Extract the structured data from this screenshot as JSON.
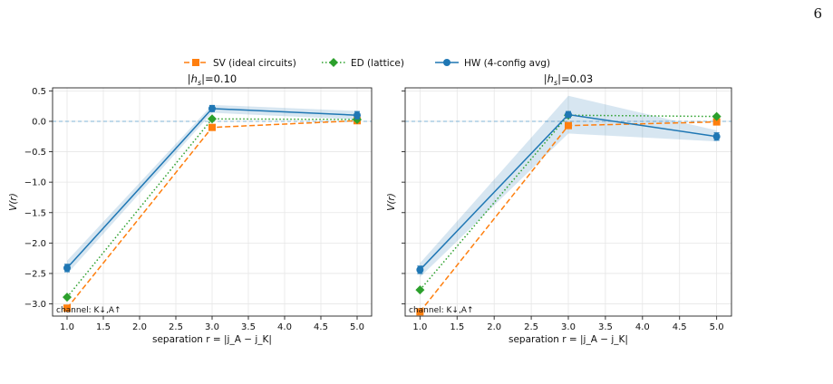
{
  "page": {
    "number": "6"
  },
  "legend": {
    "placement": "top-center",
    "items": [
      {
        "label": "SV (ideal circuits)",
        "color": "#ff7f0e",
        "marker": "square",
        "dash": "dashed"
      },
      {
        "label": "ED (lattice)",
        "color": "#2ca02c",
        "marker": "diamond",
        "dash": "dotted"
      },
      {
        "label": "HW (4-config avg)",
        "color": "#1f77b4",
        "marker": "circle",
        "dash": "solid"
      }
    ]
  },
  "chart_data": [
    {
      "type": "line",
      "title": "|h_s|=0.10",
      "title_parts": [
        "|",
        "h",
        "s",
        "|=0.10"
      ],
      "xlabel": "separation r = |j_A − j_K|",
      "ylabel": "V(r)",
      "annotation": "channel: K↓,A↑",
      "xlim": [
        0.8,
        5.2
      ],
      "ylim": [
        -3.2,
        0.55
      ],
      "xticks": [
        "1.0",
        "1.5",
        "2.0",
        "2.5",
        "3.0",
        "3.5",
        "4.0",
        "4.5",
        "5.0"
      ],
      "yticks": [
        "0.5",
        "0.0",
        "−0.5",
        "−1.0",
        "−1.5",
        "−2.0",
        "−2.5",
        "−3.0"
      ],
      "grid": true,
      "reference_line": 0.0,
      "x": [
        1.0,
        3.0,
        5.0
      ],
      "series": [
        {
          "name": "SV (ideal circuits)",
          "values": [
            -3.07,
            -0.1,
            0.01
          ],
          "color": "#ff7f0e"
        },
        {
          "name": "ED (lattice)",
          "values": [
            -2.89,
            0.04,
            0.03
          ],
          "color": "#2ca02c"
        },
        {
          "name": "HW (4-config avg)",
          "values": [
            -2.41,
            0.21,
            0.1
          ],
          "errors": [
            0.06,
            0.05,
            0.06
          ],
          "band_low": [
            -2.51,
            0.14,
            0.03
          ],
          "band_high": [
            -2.29,
            0.27,
            0.17
          ],
          "color": "#1f77b4"
        }
      ]
    },
    {
      "type": "line",
      "title": "|h_s|=0.03",
      "title_parts": [
        "|",
        "h",
        "s",
        "|=0.03"
      ],
      "xlabel": "separation r = |j_A − j_K|",
      "ylabel": "V(r)",
      "annotation": "channel: K↓,A↑",
      "xlim": [
        0.8,
        5.2
      ],
      "ylim": [
        -3.2,
        0.55
      ],
      "xticks": [
        "1.0",
        "1.5",
        "2.0",
        "2.5",
        "3.0",
        "3.5",
        "4.0",
        "4.5",
        "5.0"
      ],
      "yticks": [
        "0.5",
        "0.0",
        "−0.5",
        "−1.0",
        "−1.5",
        "−2.0",
        "−2.5",
        "−3.0"
      ],
      "grid": true,
      "reference_line": 0.0,
      "x": [
        1.0,
        3.0,
        5.0
      ],
      "series": [
        {
          "name": "SV (ideal circuits)",
          "values": [
            -3.13,
            -0.07,
            -0.01
          ],
          "color": "#ff7f0e"
        },
        {
          "name": "ED (lattice)",
          "values": [
            -2.77,
            0.1,
            0.08
          ],
          "color": "#2ca02c"
        },
        {
          "name": "HW (4-config avg)",
          "values": [
            -2.44,
            0.11,
            -0.25
          ],
          "errors": [
            0.06,
            0.05,
            0.06
          ],
          "band_low": [
            -2.56,
            -0.2,
            -0.33
          ],
          "band_high": [
            -2.33,
            0.42,
            -0.15
          ],
          "color": "#1f77b4"
        }
      ]
    }
  ]
}
